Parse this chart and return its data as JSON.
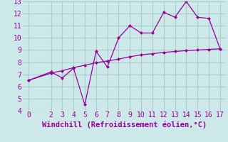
{
  "title": "",
  "xlabel": "Windchill (Refroidissement éolien,°C)",
  "line1_x": [
    0,
    2,
    3,
    4,
    5,
    6,
    7,
    8,
    9,
    10,
    11,
    12,
    13,
    14,
    15,
    16,
    17
  ],
  "line1_y": [
    6.5,
    7.2,
    6.7,
    7.5,
    4.5,
    8.9,
    7.6,
    10.0,
    11.0,
    10.4,
    10.4,
    12.1,
    11.7,
    13.0,
    11.7,
    11.6,
    9.1
  ],
  "line2_x": [
    0,
    2,
    3,
    4,
    5,
    6,
    7,
    8,
    9,
    10,
    11,
    12,
    13,
    14,
    15,
    16,
    17
  ],
  "line2_y": [
    6.5,
    7.1,
    7.3,
    7.55,
    7.75,
    7.95,
    8.1,
    8.25,
    8.45,
    8.6,
    8.7,
    8.8,
    8.88,
    8.95,
    9.0,
    9.05,
    9.1
  ],
  "line_color": "#990099",
  "bg_color": "#cce8e8",
  "grid_color": "#aacccc",
  "xlim": [
    -0.5,
    17.5
  ],
  "ylim": [
    4,
    13
  ],
  "yticks": [
    4,
    5,
    6,
    7,
    8,
    9,
    10,
    11,
    12,
    13
  ],
  "xticks": [
    0,
    2,
    3,
    4,
    5,
    6,
    7,
    8,
    9,
    10,
    11,
    12,
    13,
    14,
    15,
    16,
    17
  ],
  "tick_fontsize": 7.0,
  "xlabel_fontsize": 7.5
}
